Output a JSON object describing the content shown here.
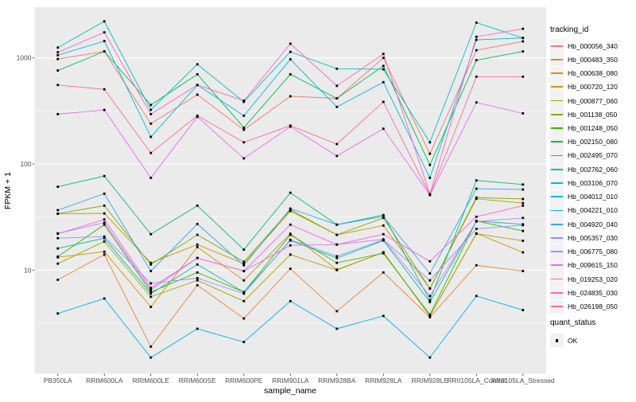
{
  "chart_data": {
    "type": "line",
    "title": "",
    "xlabel": "sample_name",
    "ylabel": "FPKM + 1",
    "y_scale": "log10",
    "y_ticks": [
      10,
      100,
      1000
    ],
    "y_minor_ticks": [
      3.162,
      31.62,
      316.2
    ],
    "ylim": [
      1.05,
      2980
    ],
    "grid": "white-on-gray",
    "legend_position": "right",
    "point_marker": {
      "shape": "square",
      "color": "#000000"
    },
    "categories": [
      "PB350LA",
      "RRIM600LA",
      "RRIM600LE",
      "RRIM600SE",
      "RRIM600PE",
      "RRIM901LA",
      "RRIM928BA",
      "RRIM928LA",
      "RRIM928LE",
      "RRII105LA_Control",
      "RRII105LA_Stressed"
    ],
    "series": [
      {
        "name": "Hb_000056_340",
        "color": "#F8766D",
        "values": [
          975,
          1150,
          240,
          450,
          210,
          435,
          415,
          1000,
          125,
          1180,
          1430
        ]
      },
      {
        "name": "Hb_000483_350",
        "color": "#EA8331",
        "values": [
          8.1,
          14,
          1.9,
          7.2,
          3.5,
          10.3,
          4.1,
          9.5,
          3.6,
          11.1,
          9.8
        ]
      },
      {
        "name": "Hb_000638_080",
        "color": "#D89000",
        "values": [
          13.2,
          14.9,
          4.5,
          16.5,
          8,
          22,
          10.1,
          14.7,
          3.7,
          22.2,
          14.7
        ]
      },
      {
        "name": "Hb_000720_120",
        "color": "#C09B00",
        "values": [
          34,
          34.2,
          11.7,
          17.4,
          11.5,
          36,
          21.5,
          26.3,
          6.7,
          47,
          42.8
        ]
      },
      {
        "name": "Hb_000877_060",
        "color": "#A3A500",
        "values": [
          11.5,
          18.6,
          5.6,
          8,
          5.1,
          14,
          10,
          14.7,
          3.7,
          22,
          18.9
        ]
      },
      {
        "name": "Hb_001138_050",
        "color": "#7CAE00",
        "values": [
          34,
          40.5,
          11.3,
          21.5,
          12,
          37,
          21.5,
          31,
          6.7,
          48.3,
          46.8
        ]
      },
      {
        "name": "Hb_001248_050",
        "color": "#39B600",
        "values": [
          13.4,
          26.8,
          6.2,
          9.5,
          6.2,
          21.5,
          11.7,
          14.4,
          3.8,
          29,
          23.4
        ]
      },
      {
        "name": "Hb_002150_080",
        "color": "#00BB4E",
        "values": [
          760,
          1150,
          360,
          700,
          220,
          700,
          415,
          840,
          98,
          950,
          1150
        ]
      },
      {
        "name": "Hb_002495_070",
        "color": "#00BF7D",
        "values": [
          61,
          77,
          21.8,
          40.5,
          15.6,
          53.6,
          26.8,
          33,
          5.2,
          70,
          64
        ]
      },
      {
        "name": "Hb_002762_060",
        "color": "#00C1A3",
        "values": [
          16,
          20,
          6,
          11.3,
          6.2,
          19,
          13,
          19,
          5,
          29,
          27
        ]
      },
      {
        "name": "Hb_003106_070",
        "color": "#00BFC4",
        "values": [
          1250,
          2210,
          324,
          870,
          385,
          1140,
          790,
          780,
          160,
          2150,
          1540
        ]
      },
      {
        "name": "Hb_004012_010",
        "color": "#00BAE0",
        "values": [
          1060,
          1440,
          180,
          555,
          285,
          970,
          345,
          590,
          74,
          1480,
          1540
        ]
      },
      {
        "name": "Hb_004221_010",
        "color": "#00B0F6",
        "values": [
          3.9,
          5.4,
          1.5,
          2.8,
          2.1,
          5.1,
          2.8,
          3.7,
          1.5,
          5.7,
          4.2
        ]
      },
      {
        "name": "Hb_004920_040",
        "color": "#35A2FF",
        "values": [
          36.7,
          52.5,
          9.8,
          27.2,
          11.1,
          38,
          26.8,
          32,
          9.3,
          58.5,
          57.5
        ]
      },
      {
        "name": "Hb_005357_030",
        "color": "#9590FF",
        "values": [
          20,
          20.7,
          7.5,
          8.4,
          6,
          19.3,
          13.5,
          19.3,
          8,
          24.5,
          26.5
        ]
      },
      {
        "name": "Hb_006775_080",
        "color": "#C77CFF",
        "values": [
          22.2,
          28,
          6.5,
          13,
          9.8,
          17.1,
          17.4,
          19.5,
          5.7,
          28.7,
          31
        ]
      },
      {
        "name": "Hb_009615_150",
        "color": "#E76BF3",
        "values": [
          295,
          323,
          74,
          278,
          113,
          225,
          119,
          215,
          51,
          380,
          300
        ]
      },
      {
        "name": "Hb_019253_020",
        "color": "#FA62DB",
        "values": [
          22,
          30,
          6.8,
          13,
          9.8,
          26.8,
          17.4,
          21.8,
          12.1,
          31.8,
          40.5
        ]
      },
      {
        "name": "Hb_024835_030",
        "color": "#FF62BC",
        "values": [
          1130,
          1740,
          295,
          555,
          395,
          1360,
          545,
          1090,
          52,
          1580,
          1880
        ]
      },
      {
        "name": "Hb_026198_050",
        "color": "#FF6A98",
        "values": [
          555,
          505,
          127,
          285,
          160,
          230,
          154,
          385,
          51,
          665,
          665
        ]
      }
    ]
  },
  "legend": {
    "tracking_title": "tracking_id",
    "quant_title": "quant_status",
    "quant_items": [
      {
        "label": "OK",
        "marker": "black-square"
      }
    ]
  },
  "panel": {
    "bg": "#EBEBEB",
    "grid_major": "#FFFFFF",
    "grid_minor": "#FFFFFF",
    "tick_color": "#333333",
    "tick_label_color": "#4D4D4D",
    "legend_key_bg": "#F2F2F2"
  }
}
